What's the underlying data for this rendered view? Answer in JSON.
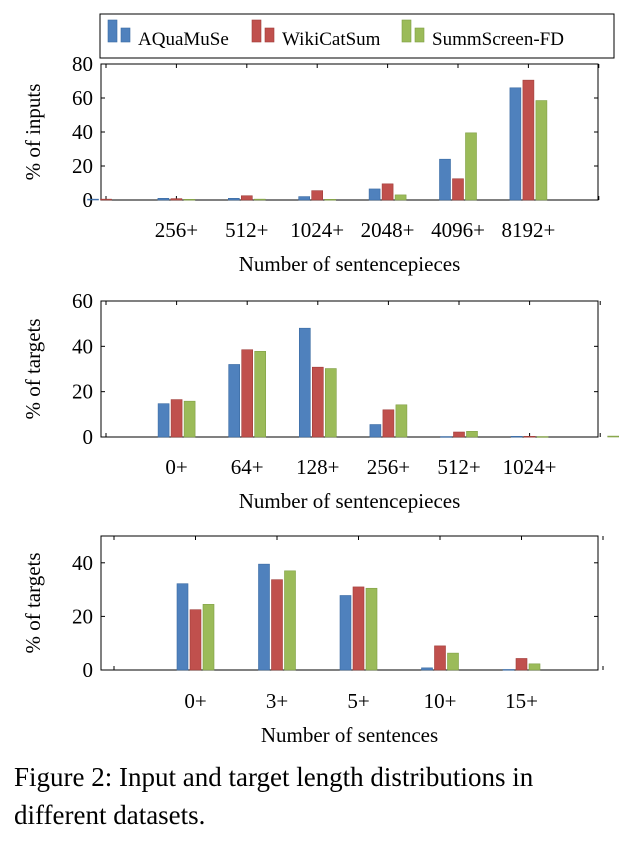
{
  "legend": {
    "entries": [
      {
        "name": "AQuaMuSe",
        "color": "#4f81bd"
      },
      {
        "name": "WikiCatSum",
        "color": "#c0504d"
      },
      {
        "name": "SummScreen-FD",
        "color": "#9bbb59"
      }
    ]
  },
  "caption": "Figure 2: Input and target length distributions in different datasets.",
  "chart_data": [
    {
      "type": "bar",
      "xlabel": "Number of sentencepieces",
      "ylabel": "% of inputs",
      "ylim": [
        0,
        80
      ],
      "yticks": [
        0,
        20,
        40,
        60,
        80
      ],
      "categories": [
        "",
        "256+",
        "512+",
        "1024+",
        "2048+",
        "4096+",
        "8192+",
        ""
      ],
      "series": [
        {
          "name": "AQuaMuSe",
          "values": [
            0.5,
            1,
            1,
            2,
            6.5,
            24,
            66,
            0
          ]
        },
        {
          "name": "WikiCatSum",
          "values": [
            0.5,
            0.8,
            2.5,
            5.5,
            9.5,
            12.5,
            70.5,
            0
          ]
        },
        {
          "name": "SummScreen-FD",
          "values": [
            0,
            0.4,
            0.5,
            0.4,
            3,
            39.5,
            58.5,
            0
          ]
        }
      ]
    },
    {
      "type": "bar",
      "xlabel": "Number of sentencepieces",
      "ylabel": "% of targets",
      "ylim": [
        0,
        60
      ],
      "yticks": [
        0,
        20,
        40,
        60
      ],
      "categories": [
        "",
        "0+",
        "64+",
        "128+",
        "256+",
        "512+",
        "1024+",
        ""
      ],
      "series": [
        {
          "name": "AQuaMuSe",
          "values": [
            0,
            14.7,
            32,
            48,
            5.5,
            0.2,
            0.3,
            0
          ]
        },
        {
          "name": "WikiCatSum",
          "values": [
            0,
            16.5,
            38.5,
            30.8,
            12,
            2.2,
            0.3,
            0
          ]
        },
        {
          "name": "SummScreen-FD",
          "values": [
            0,
            15.8,
            37.8,
            30.2,
            14.2,
            2.5,
            0.2,
            0.4
          ]
        }
      ]
    },
    {
      "type": "bar",
      "xlabel": "Number of sentences",
      "ylabel": "% of targets",
      "ylim": [
        0,
        50
      ],
      "yticks": [
        0,
        20,
        40
      ],
      "categories": [
        "",
        "0+",
        "3+",
        "5+",
        "10+",
        "15+",
        ""
      ],
      "series": [
        {
          "name": "AQuaMuSe",
          "values": [
            0,
            32.2,
            39.5,
            27.8,
            0.8,
            0.2,
            0
          ]
        },
        {
          "name": "WikiCatSum",
          "values": [
            0,
            22.5,
            33.7,
            31,
            9,
            4.3,
            0
          ]
        },
        {
          "name": "SummScreen-FD",
          "values": [
            0,
            24.5,
            37,
            30.5,
            6.3,
            2.3,
            0
          ]
        }
      ]
    }
  ]
}
